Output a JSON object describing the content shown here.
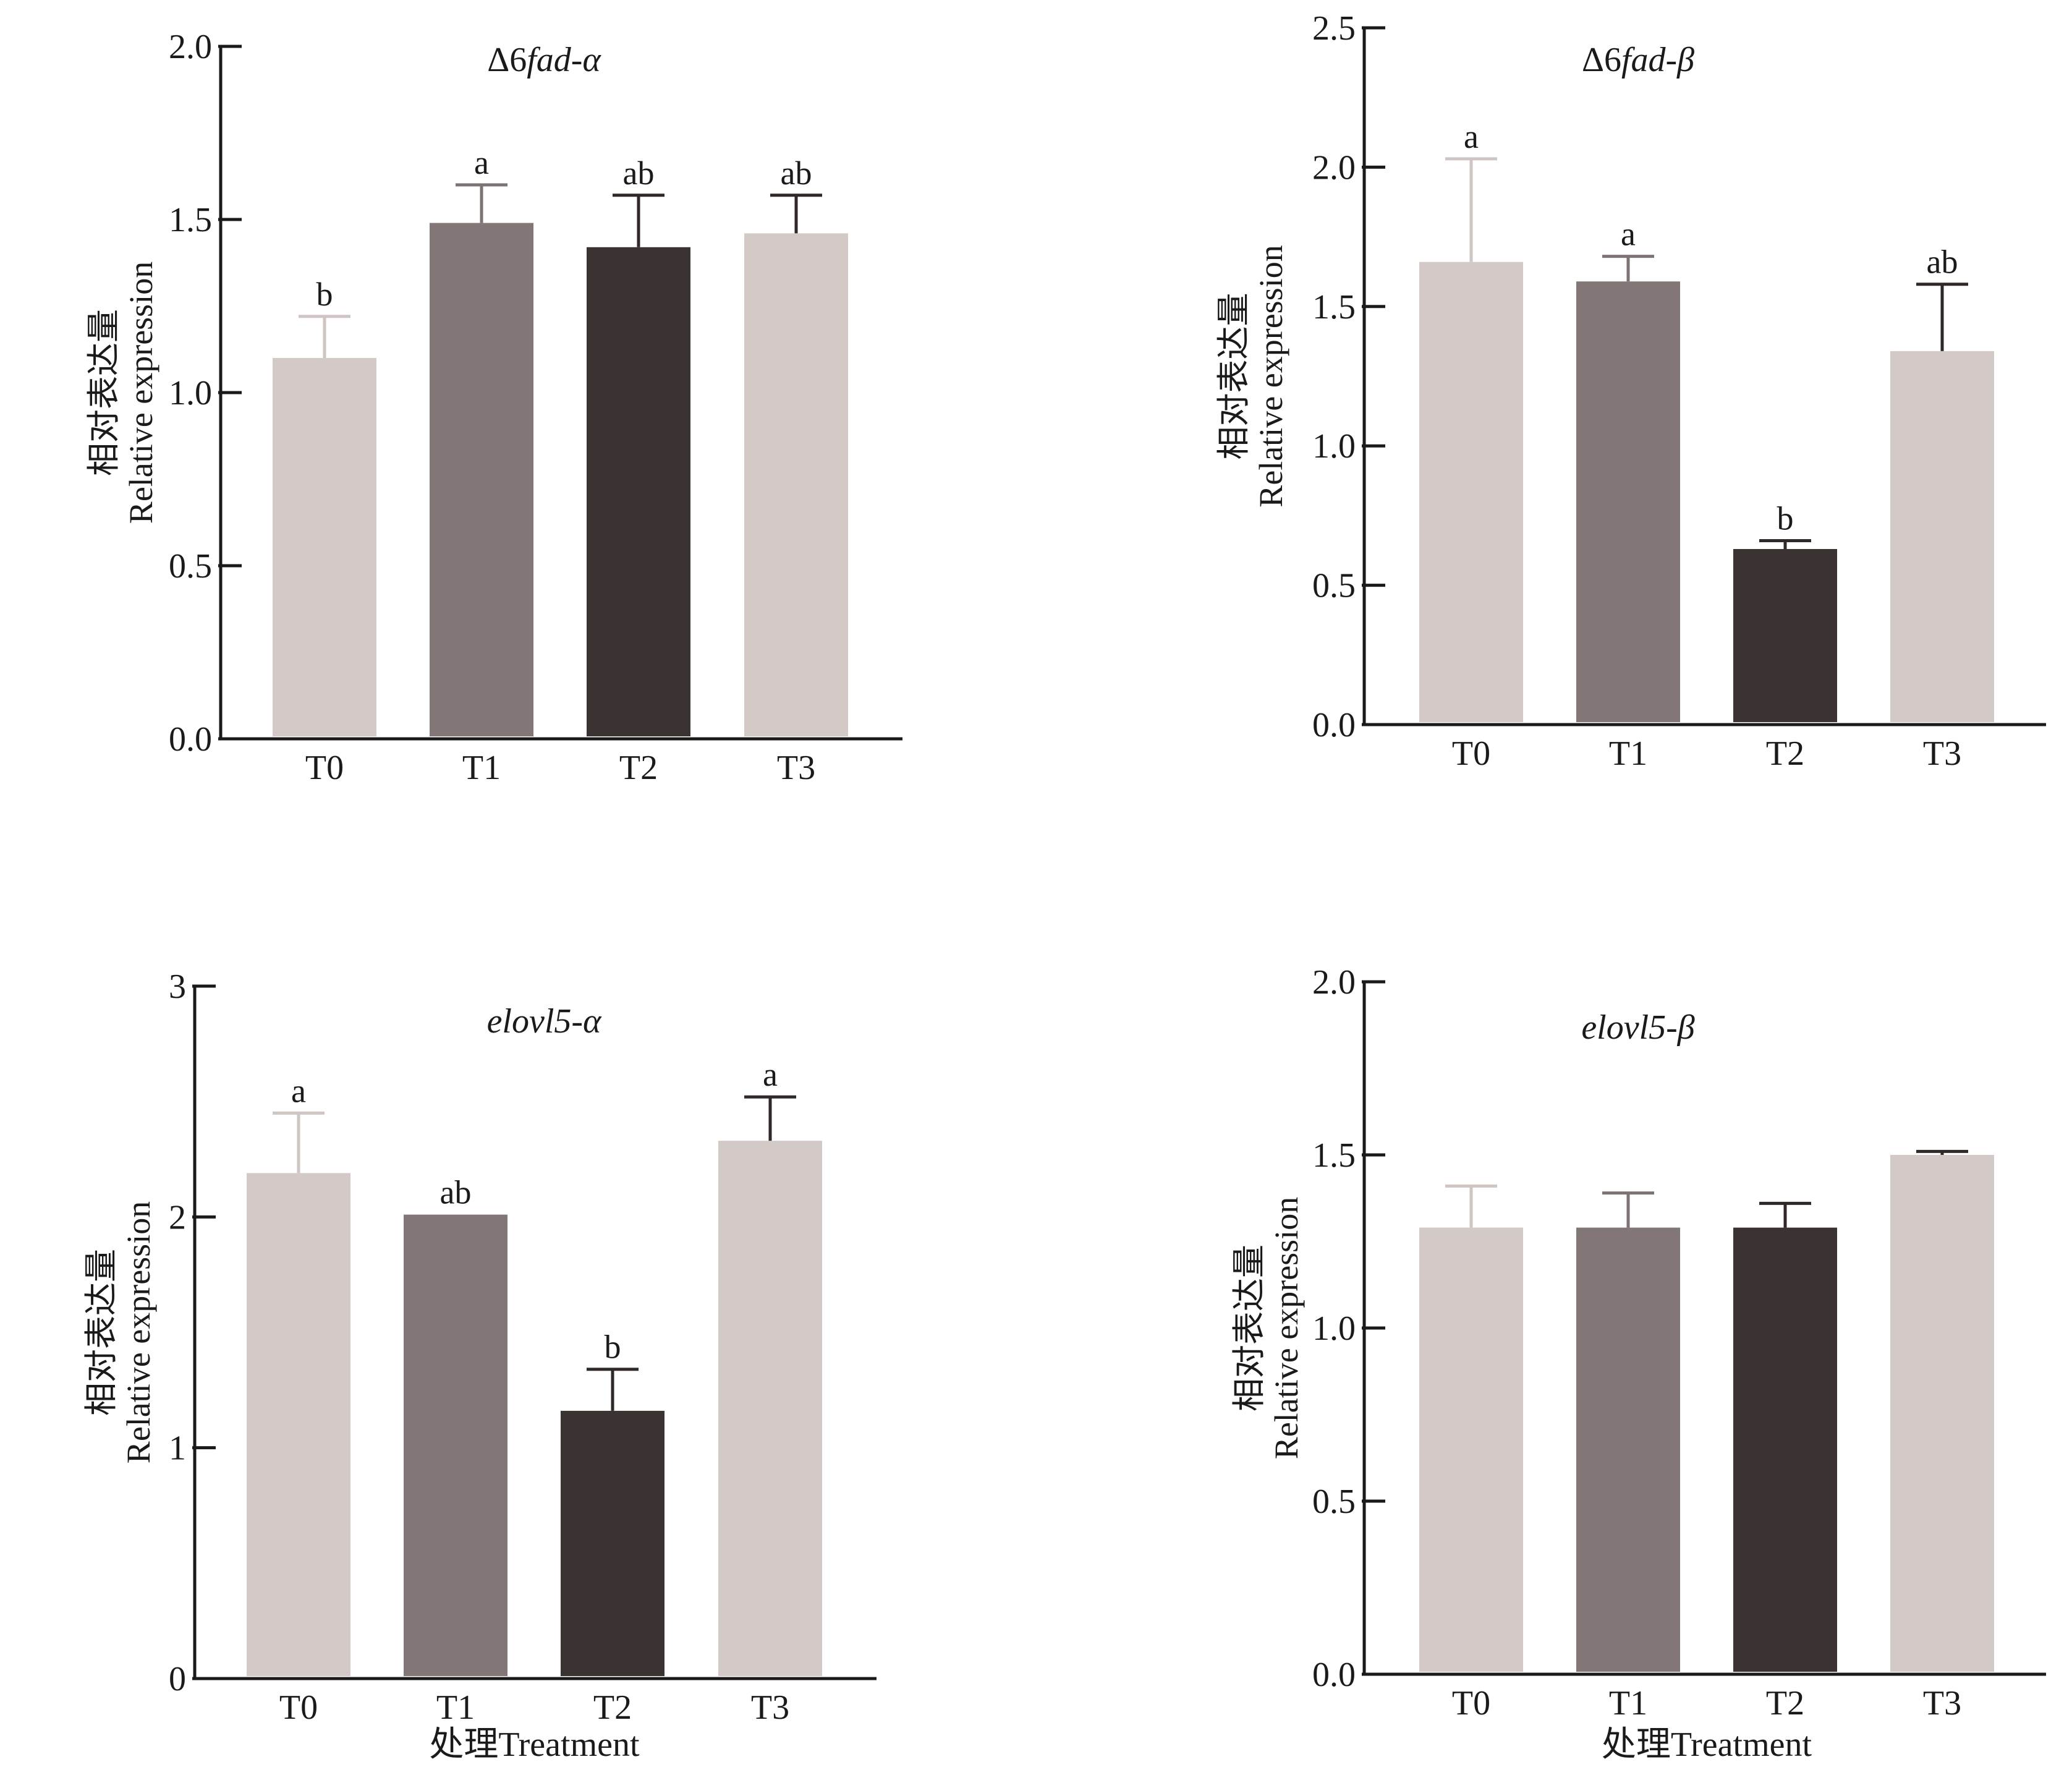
{
  "x_axis_label": "处理Treatment",
  "y_axis_label_cn": "相对表达量",
  "y_axis_label_en": "Relative expression",
  "colors": {
    "T0": "#d3c9c7",
    "T1": "#827776",
    "T2": "#3b3331",
    "T3": "#d3c9c7",
    "axis": "#1a1a1a",
    "error_light": "#cfc6c4",
    "error_mid": "#7d7372",
    "error_dark": "#2f2927"
  },
  "chart_data": [
    {
      "type": "bar",
      "title_prefix": "Δ6",
      "title_gene": "fad-α",
      "categories": [
        "T0",
        "T1",
        "T2",
        "T3"
      ],
      "values": [
        1.1,
        1.49,
        1.42,
        1.46
      ],
      "errors": [
        0.12,
        0.11,
        0.15,
        0.11
      ],
      "significance": [
        "b",
        "a",
        "ab",
        "ab"
      ],
      "ylim": [
        0,
        2.0
      ],
      "yticks": [
        "0.0",
        "0.5",
        "1.0",
        "1.5",
        "2.0"
      ],
      "xlabel": "",
      "ylabel": "相对表达量 Relative expression"
    },
    {
      "type": "bar",
      "title_prefix": "Δ6",
      "title_gene": "fad-β",
      "categories": [
        "T0",
        "T1",
        "T2",
        "T3"
      ],
      "values": [
        1.66,
        1.59,
        0.63,
        1.34
      ],
      "errors": [
        0.37,
        0.09,
        0.03,
        0.24
      ],
      "significance": [
        "a",
        "a",
        "b",
        "ab"
      ],
      "ylim": [
        0,
        2.5
      ],
      "yticks": [
        "0.0",
        "0.5",
        "1.0",
        "1.5",
        "2.0",
        "2.5"
      ],
      "xlabel": "",
      "ylabel": "相对表达量 Relative expression"
    },
    {
      "type": "bar",
      "title_prefix": "",
      "title_gene": "elovl5-α",
      "categories": [
        "T0",
        "T1",
        "T2",
        "T3"
      ],
      "values": [
        2.19,
        2.01,
        1.16,
        2.33
      ],
      "errors": [
        0.26,
        0.0,
        0.18,
        0.19
      ],
      "significance": [
        "a",
        "ab",
        "b",
        "a"
      ],
      "ylim": [
        0,
        3
      ],
      "yticks": [
        "0",
        "1",
        "2",
        "3"
      ],
      "xlabel": "处理Treatment",
      "ylabel": "相对表达量 Relative expression"
    },
    {
      "type": "bar",
      "title_prefix": "",
      "title_gene": "elovl5-β",
      "categories": [
        "T0",
        "T1",
        "T2",
        "T3"
      ],
      "values": [
        1.29,
        1.29,
        1.29,
        1.5
      ],
      "errors": [
        0.12,
        0.1,
        0.07,
        0.01
      ],
      "significance": [
        "",
        "",
        "",
        ""
      ],
      "ylim": [
        0,
        2.0
      ],
      "yticks": [
        "0.0",
        "0.5",
        "1.0",
        "1.5",
        "2.0"
      ],
      "xlabel": "处理Treatment",
      "ylabel": "相对表达量 Relative expression"
    }
  ]
}
